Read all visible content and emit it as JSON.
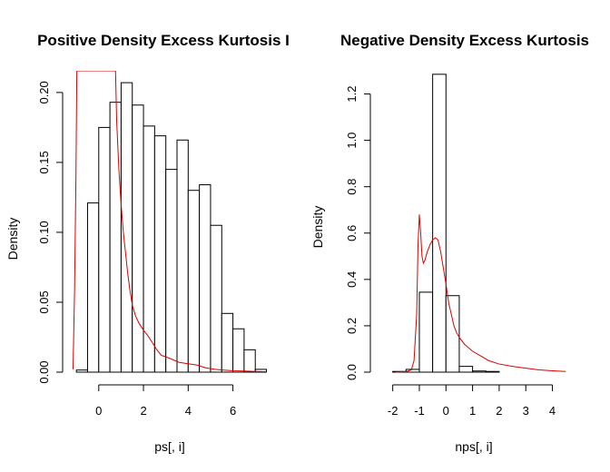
{
  "chart_data": [
    {
      "type": "bar",
      "title": "Positive Density Excess Kurtosis I",
      "xlabel": "ps[, i]",
      "ylabel": "Density",
      "xlim": [
        -1.25,
        7.6
      ],
      "ylim": [
        0,
        0.2155
      ],
      "xticks": [
        0,
        2,
        4,
        6
      ],
      "xtick_labels": [
        "0",
        "2",
        "4",
        "6"
      ],
      "yticks": [
        0.0,
        0.05,
        0.1,
        0.15,
        0.2
      ],
      "ytick_labels": [
        "0.00",
        "0.05",
        "0.10",
        "0.15",
        "0.20"
      ],
      "grid": false,
      "histogram": {
        "bin_edges": [
          -1.0,
          -0.5,
          0.0,
          0.5,
          1.0,
          1.5,
          2.0,
          2.5,
          3.0,
          3.5,
          4.0,
          4.5,
          5.0,
          5.5,
          6.0,
          6.5,
          7.0,
          7.5
        ],
        "densities": [
          0.0015,
          0.121,
          0.175,
          0.193,
          0.207,
          0.191,
          0.176,
          0.169,
          0.145,
          0.166,
          0.13,
          0.134,
          0.105,
          0.042,
          0.031,
          0.016,
          0.002
        ]
      },
      "density_curve": {
        "color": "#dd0000",
        "x": [
          -1.15,
          -1.08,
          -1.02,
          -0.98,
          0.75,
          0.8,
          0.9,
          1.0,
          1.1,
          1.2,
          1.3,
          1.4,
          1.5,
          1.65,
          1.8,
          2.0,
          2.2,
          2.4,
          2.6,
          2.8,
          3.0,
          3.3,
          3.6,
          4.0,
          4.4,
          4.8,
          5.2,
          5.6,
          6.0,
          6.5,
          7.0,
          7.5
        ],
        "y": [
          0.002,
          0.06,
          0.14,
          0.2155,
          0.2155,
          0.18,
          0.145,
          0.12,
          0.1,
          0.085,
          0.07,
          0.058,
          0.048,
          0.04,
          0.035,
          0.03,
          0.026,
          0.021,
          0.016,
          0.012,
          0.011,
          0.009,
          0.007,
          0.006,
          0.005,
          0.003,
          0.002,
          0.0015,
          0.001,
          0.0008,
          0.0005,
          0.0003
        ]
      }
    },
    {
      "type": "bar",
      "title": "Negative Density Excess Kurtosis",
      "xlabel": "nps[, i]",
      "ylabel": "Density",
      "xlim": [
        -2.5,
        4.8
      ],
      "ylim": [
        0,
        1.3
      ],
      "xticks": [
        -2,
        -1,
        0,
        1,
        2,
        3,
        4
      ],
      "xtick_labels": [
        "-2",
        "-1",
        "0",
        "1",
        "2",
        "3",
        "4"
      ],
      "yticks": [
        0.0,
        0.2,
        0.4,
        0.6,
        0.8,
        1.0,
        1.2
      ],
      "ytick_labels": [
        "0.0",
        "0.2",
        "0.4",
        "0.6",
        "0.8",
        "1.0",
        "1.2"
      ],
      "grid": false,
      "histogram": {
        "bin_edges": [
          -2.0,
          -1.5,
          -1.0,
          -0.5,
          0.0,
          0.5,
          1.0,
          1.5,
          2.0
        ],
        "densities": [
          0.003,
          0.012,
          0.345,
          1.285,
          0.33,
          0.025,
          0.005,
          0.003
        ]
      },
      "density_curve": {
        "color": "#dd0000",
        "x": [
          -1.9,
          -1.5,
          -1.3,
          -1.2,
          -1.1,
          -1.05,
          -1.0,
          -0.95,
          -0.9,
          -0.85,
          -0.8,
          -0.75,
          -0.7,
          -0.6,
          -0.5,
          -0.4,
          -0.3,
          -0.2,
          -0.1,
          0.0,
          0.1,
          0.2,
          0.3,
          0.4,
          0.5,
          0.7,
          1.0,
          1.3,
          1.6,
          2.0,
          2.5,
          3.0,
          3.5,
          4.0,
          4.5
        ],
        "y": [
          0.0,
          0.002,
          0.01,
          0.05,
          0.25,
          0.55,
          0.68,
          0.6,
          0.5,
          0.47,
          0.48,
          0.5,
          0.52,
          0.55,
          0.57,
          0.58,
          0.57,
          0.52,
          0.45,
          0.38,
          0.3,
          0.25,
          0.2,
          0.17,
          0.15,
          0.12,
          0.09,
          0.07,
          0.05,
          0.035,
          0.025,
          0.017,
          0.01,
          0.006,
          0.003
        ]
      }
    }
  ]
}
